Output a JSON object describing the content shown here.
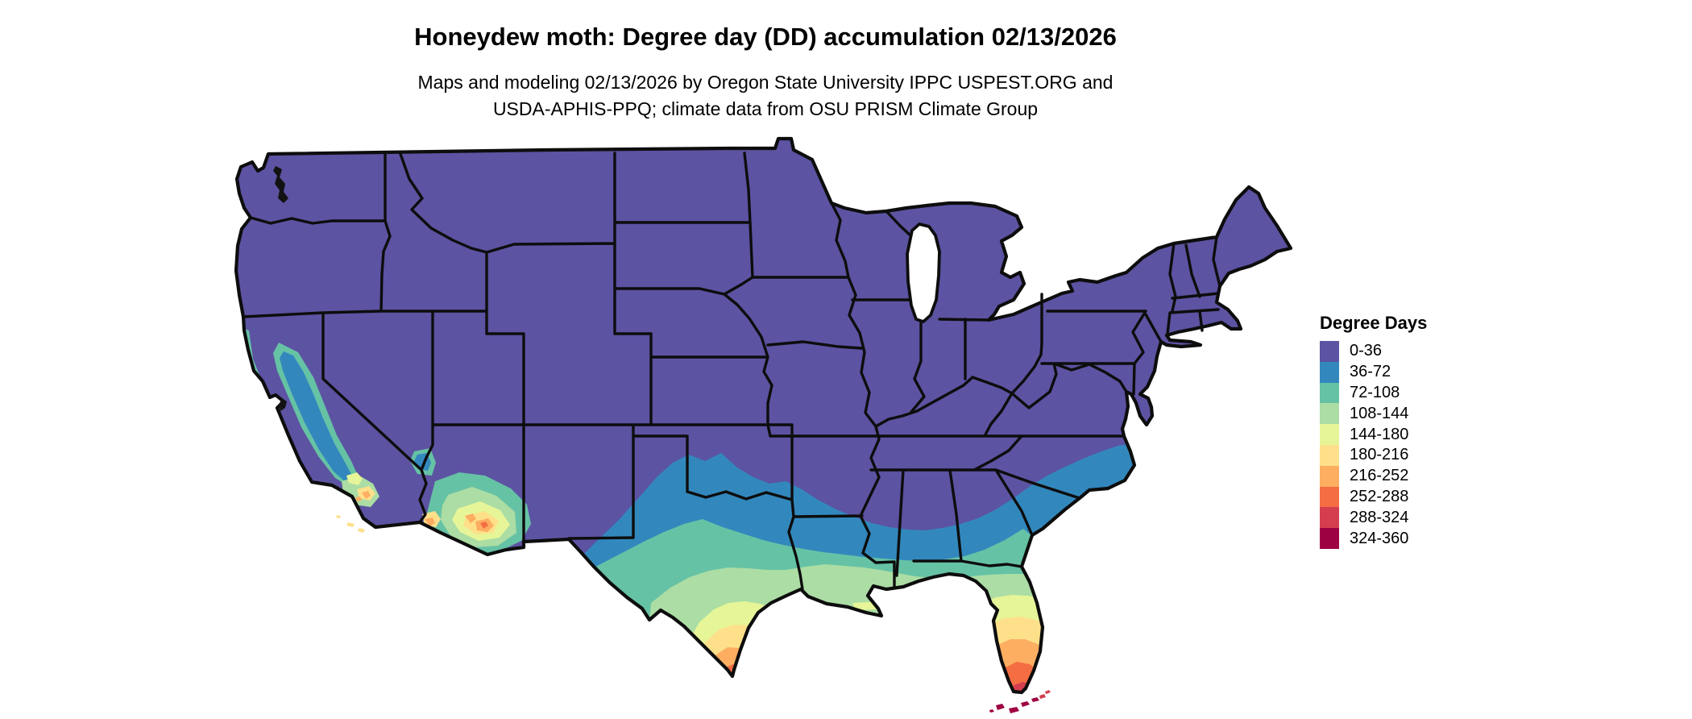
{
  "title": "Honeydew moth: Degree day (DD) accumulation 02/13/2026",
  "subtitle_line1": "Maps and modeling 02/13/2026 by Oregon State University IPPC USPEST.ORG and",
  "subtitle_line2": "USDA-APHIS-PPQ; climate data from OSU PRISM Climate Group",
  "map": {
    "region": "Conterminous United States",
    "state_border_color": "#0d0d0d",
    "background_color": "#ffffff"
  },
  "legend": {
    "title": "Degree Days",
    "items": [
      {
        "label": "0-36",
        "color": "#5c53a2"
      },
      {
        "label": "36-72",
        "color": "#3288bd"
      },
      {
        "label": "72-108",
        "color": "#66c2a5"
      },
      {
        "label": "108-144",
        "color": "#abdda4"
      },
      {
        "label": "144-180",
        "color": "#e6f598"
      },
      {
        "label": "180-216",
        "color": "#fee08b"
      },
      {
        "label": "216-252",
        "color": "#fdae61"
      },
      {
        "label": "252-288",
        "color": "#f46d43"
      },
      {
        "label": "288-324",
        "color": "#d53e4f"
      },
      {
        "label": "324-360",
        "color": "#9e0142"
      }
    ]
  }
}
